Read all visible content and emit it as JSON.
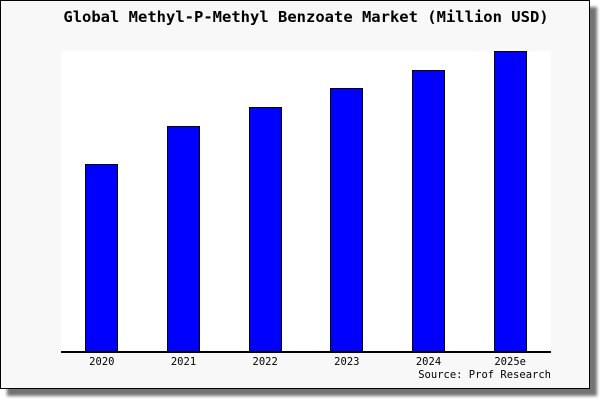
{
  "chart": {
    "title": "Global Methyl-P-Methyl Benzoate Market (Million USD)",
    "source": "Source: Prof Research"
  },
  "colors": {
    "bar_fill": "#0000ff",
    "bar_edge": "#000000",
    "figure_background": "#f8f8f8",
    "plot_background": "#ffffff",
    "axis_line": "#000000",
    "text": "#000000"
  },
  "chart_data": {
    "type": "bar",
    "title": "Global Methyl-P-Methyl Benzoate Market (Million USD)",
    "categories": [
      "2020",
      "2021",
      "2022",
      "2023",
      "2024",
      "2025e"
    ],
    "values": [
      62.5,
      75.0,
      81.5,
      87.8,
      93.6,
      100.0
    ],
    "units": "relative (y-axis unlabeled, values estimated from bar heights, tallest bar = 100)",
    "xlabel": "",
    "ylabel": "",
    "ylim": [
      0,
      100
    ],
    "grid": false,
    "legend": "none",
    "annotations": [
      "Source: Prof Research"
    ]
  }
}
